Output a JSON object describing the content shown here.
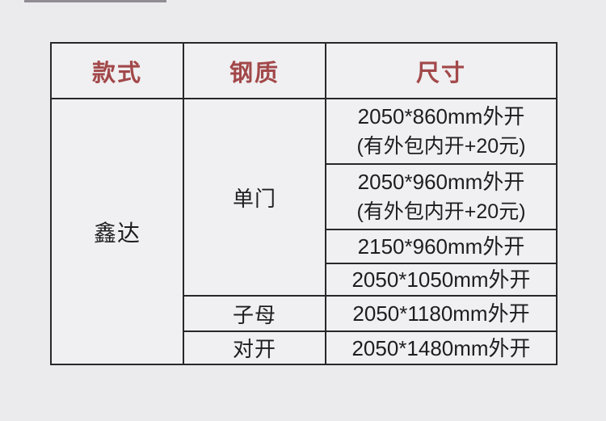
{
  "page": {
    "background_color": "#ebeaed",
    "accent_color": "#a2484a",
    "border_color": "#28282b"
  },
  "table": {
    "headers": [
      {
        "label": "款式"
      },
      {
        "label": "钢质"
      },
      {
        "label": "尺寸"
      }
    ],
    "brand": "鑫达",
    "door_types": [
      {
        "label": "单门"
      },
      {
        "label": "子母"
      },
      {
        "label": "对开"
      }
    ],
    "sizes": [
      {
        "main": "2050*860mm外开",
        "note": "(有外包内开+20元)"
      },
      {
        "main": "2050*960mm外开",
        "note": "(有外包内开+20元)"
      },
      {
        "main": "2150*960mm外开",
        "note": ""
      },
      {
        "main": "2050*1050mm外开",
        "note": ""
      },
      {
        "main": "2050*1180mm外开",
        "note": ""
      },
      {
        "main": "2050*1480mm外开",
        "note": ""
      }
    ]
  }
}
